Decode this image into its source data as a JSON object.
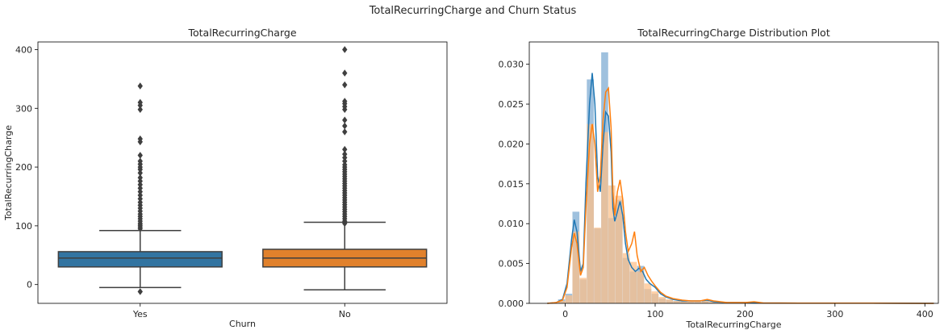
{
  "figure": {
    "suptitle": "TotalRecurringCharge and Churn Status"
  },
  "chart_data": [
    {
      "type": "box",
      "title": "TotalRecurringCharge",
      "xlabel": "Churn",
      "ylabel": "TotalRecurringCharge",
      "categories": [
        "Yes",
        "No"
      ],
      "ylim": [
        -32,
        413
      ],
      "yticks": [
        0,
        100,
        200,
        300,
        400
      ],
      "colors": [
        "#3274a1",
        "#e1812c"
      ],
      "boxes": [
        {
          "category": "Yes",
          "whisker_low": -5,
          "q1": 30,
          "median": 45,
          "q3": 56,
          "whisker_high": 92,
          "outliers": [
            -12,
            95,
            98,
            101,
            104,
            108,
            112,
            116,
            120,
            125,
            130,
            135,
            140,
            146,
            152,
            158,
            164,
            170,
            176,
            182,
            190,
            196,
            200,
            205,
            210,
            220,
            243,
            248,
            298,
            305,
            310,
            338
          ]
        },
        {
          "category": "No",
          "whisker_low": -9,
          "q1": 30,
          "median": 45,
          "q3": 60,
          "whisker_high": 106,
          "outliers": [
            104,
            108,
            112,
            116,
            120,
            124,
            128,
            132,
            136,
            140,
            144,
            148,
            152,
            156,
            160,
            164,
            168,
            172,
            176,
            180,
            184,
            188,
            192,
            196,
            200,
            204,
            210,
            216,
            222,
            230,
            260,
            270,
            280,
            298,
            303,
            308,
            312,
            340,
            360,
            400
          ]
        }
      ]
    },
    {
      "type": "hist_kde",
      "title": "TotalRecurringCharge Distribution Plot",
      "xlabel": "TotalRecurringCharge",
      "xlim": [
        -40,
        415
      ],
      "ylim": [
        0,
        0.0328
      ],
      "xticks": [
        0,
        100,
        200,
        300,
        400
      ],
      "yticks": [
        0.0,
        0.005,
        0.01,
        0.015,
        0.02,
        0.025,
        0.03
      ],
      "bin_width": 8,
      "series": [
        {
          "color": "#1f77b4",
          "hist_color": "#9fc1de",
          "bins": [
            [
              -8,
              0.0005
            ],
            [
              0,
              0.0012
            ],
            [
              8,
              0.0115
            ],
            [
              16,
              0.003
            ],
            [
              24,
              0.0281
            ],
            [
              32,
              0.0094
            ],
            [
              40,
              0.0315
            ],
            [
              48,
              0.0107
            ],
            [
              56,
              0.013
            ],
            [
              64,
              0.0057
            ],
            [
              72,
              0.004
            ],
            [
              80,
              0.0047
            ],
            [
              88,
              0.0018
            ],
            [
              96,
              0.0012
            ],
            [
              104,
              0.0006
            ],
            [
              112,
              0.0004
            ],
            [
              120,
              0.0003
            ],
            [
              128,
              0.0002
            ],
            [
              136,
              0.0002
            ],
            [
              144,
              0.0002
            ],
            [
              152,
              0.0003
            ],
            [
              160,
              0.0001
            ],
            [
              168,
              0.0001
            ],
            [
              200,
              0.0001
            ],
            [
              296,
              5e-05
            ],
            [
              336,
              5e-05
            ]
          ],
          "kde": [
            [
              -20,
              0
            ],
            [
              -10,
              0.0001
            ],
            [
              -3,
              0.0005
            ],
            [
              2,
              0.0025
            ],
            [
              7,
              0.008
            ],
            [
              10,
              0.0105
            ],
            [
              13,
              0.009
            ],
            [
              17,
              0.004
            ],
            [
              20,
              0.005
            ],
            [
              23,
              0.015
            ],
            [
              27,
              0.025
            ],
            [
              30,
              0.0289
            ],
            [
              33,
              0.025
            ],
            [
              36,
              0.016
            ],
            [
              39,
              0.014
            ],
            [
              42,
              0.02
            ],
            [
              45,
              0.024
            ],
            [
              48,
              0.0235
            ],
            [
              51,
              0.019
            ],
            [
              53,
              0.012
            ],
            [
              55,
              0.0103
            ],
            [
              58,
              0.0115
            ],
            [
              61,
              0.0128
            ],
            [
              64,
              0.011
            ],
            [
              67,
              0.0075
            ],
            [
              70,
              0.0055
            ],
            [
              74,
              0.0045
            ],
            [
              78,
              0.004
            ],
            [
              82,
              0.0044
            ],
            [
              86,
              0.004
            ],
            [
              90,
              0.003
            ],
            [
              94,
              0.0025
            ],
            [
              100,
              0.002
            ],
            [
              106,
              0.0012
            ],
            [
              112,
              0.0008
            ],
            [
              120,
              0.0005
            ],
            [
              130,
              0.0003
            ],
            [
              140,
              0.0003
            ],
            [
              150,
              0.0003
            ],
            [
              158,
              0.0004
            ],
            [
              165,
              0.0002
            ],
            [
              180,
              0.0001
            ],
            [
              200,
              0.0001
            ],
            [
              215,
              5e-05
            ],
            [
              260,
              3e-05
            ],
            [
              300,
              2e-05
            ],
            [
              340,
              2e-05
            ],
            [
              410,
              0
            ]
          ]
        },
        {
          "color": "#ff7f0e",
          "hist_color": "#ffbf86",
          "bins": [
            [
              -8,
              0.0003
            ],
            [
              0,
              0.001
            ],
            [
              8,
              0.009
            ],
            [
              16,
              0.0032
            ],
            [
              24,
              0.0225
            ],
            [
              32,
              0.0095
            ],
            [
              40,
              0.0215
            ],
            [
              48,
              0.0148
            ],
            [
              56,
              0.0135
            ],
            [
              64,
              0.0063
            ],
            [
              72,
              0.0052
            ],
            [
              80,
              0.004
            ],
            [
              88,
              0.0025
            ],
            [
              96,
              0.0015
            ],
            [
              104,
              0.0008
            ],
            [
              112,
              0.0005
            ],
            [
              120,
              0.0003
            ],
            [
              128,
              0.0003
            ],
            [
              136,
              0.0002
            ],
            [
              144,
              0.0002
            ],
            [
              152,
              0.0003
            ],
            [
              160,
              0.0002
            ],
            [
              168,
              0.0001
            ],
            [
              200,
              0.0001
            ],
            [
              208,
              0.0001
            ],
            [
              296,
              5e-05
            ],
            [
              400,
              3e-05
            ]
          ],
          "kde": [
            [
              -20,
              0
            ],
            [
              -10,
              0.0001
            ],
            [
              -3,
              0.0004
            ],
            [
              2,
              0.002
            ],
            [
              7,
              0.007
            ],
            [
              10,
              0.0088
            ],
            [
              13,
              0.0075
            ],
            [
              17,
              0.0035
            ],
            [
              20,
              0.0045
            ],
            [
              23,
              0.012
            ],
            [
              27,
              0.02
            ],
            [
              30,
              0.0225
            ],
            [
              33,
              0.02
            ],
            [
              36,
              0.014
            ],
            [
              39,
              0.016
            ],
            [
              42,
              0.023
            ],
            [
              45,
              0.0265
            ],
            [
              48,
              0.027
            ],
            [
              51,
              0.022
            ],
            [
              53,
              0.014
            ],
            [
              55,
              0.011
            ],
            [
              58,
              0.014
            ],
            [
              61,
              0.0155
            ],
            [
              64,
              0.013
            ],
            [
              67,
              0.009
            ],
            [
              70,
              0.0065
            ],
            [
              74,
              0.0075
            ],
            [
              77,
              0.009
            ],
            [
              80,
              0.006
            ],
            [
              84,
              0.004
            ],
            [
              88,
              0.0045
            ],
            [
              92,
              0.0035
            ],
            [
              96,
              0.0028
            ],
            [
              100,
              0.0022
            ],
            [
              106,
              0.0014
            ],
            [
              112,
              0.0009
            ],
            [
              120,
              0.0006
            ],
            [
              130,
              0.0004
            ],
            [
              140,
              0.0003
            ],
            [
              150,
              0.0003
            ],
            [
              158,
              0.0005
            ],
            [
              165,
              0.0003
            ],
            [
              180,
              0.0001
            ],
            [
              200,
              0.0001
            ],
            [
              210,
              0.0002
            ],
            [
              220,
              5e-05
            ],
            [
              260,
              3e-05
            ],
            [
              300,
              3e-05
            ],
            [
              340,
              2e-05
            ],
            [
              410,
              0
            ]
          ]
        }
      ]
    }
  ]
}
